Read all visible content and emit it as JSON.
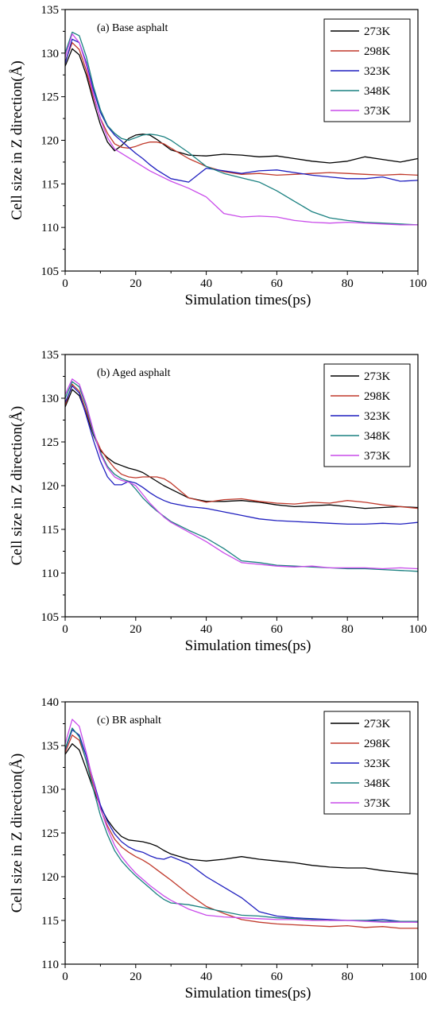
{
  "chart_data": [
    {
      "type": "line",
      "title": "(a) Base asphalt",
      "xlabel": "Simulation times(ps)",
      "ylabel": "Cell size in Z direction(Å)",
      "xlim": [
        0,
        100
      ],
      "ylim": [
        105,
        135
      ],
      "xticks": [
        0,
        20,
        40,
        60,
        80,
        100
      ],
      "yticks": [
        105,
        110,
        115,
        120,
        125,
        130,
        135
      ],
      "legend_position": "top-right",
      "grid": false,
      "series": [
        {
          "name": "273K",
          "color": "#000000",
          "x": [
            0,
            2,
            4,
            6,
            8,
            10,
            12,
            14,
            16,
            18,
            20,
            22,
            24,
            26,
            28,
            30,
            35,
            40,
            45,
            50,
            55,
            60,
            65,
            70,
            75,
            80,
            85,
            90,
            95,
            100
          ],
          "values": [
            128.5,
            130.5,
            129.8,
            127.5,
            124.5,
            121.8,
            119.8,
            118.8,
            119.4,
            120.2,
            120.6,
            120.7,
            120.6,
            120.1,
            119.5,
            118.9,
            118.3,
            118.2,
            118.4,
            118.3,
            118.1,
            118.2,
            117.9,
            117.6,
            117.4,
            117.6,
            118.1,
            117.8,
            117.5,
            117.9
          ]
        },
        {
          "name": "298K",
          "color": "#c0392b",
          "x": [
            0,
            2,
            4,
            6,
            8,
            10,
            12,
            14,
            16,
            18,
            20,
            22,
            24,
            26,
            28,
            30,
            35,
            40,
            45,
            50,
            55,
            60,
            65,
            70,
            75,
            80,
            85,
            90,
            95,
            100
          ],
          "values": [
            129.0,
            131.2,
            130.4,
            128.0,
            125.0,
            122.5,
            120.8,
            119.6,
            119.2,
            119.1,
            119.3,
            119.6,
            119.8,
            119.8,
            119.6,
            119.1,
            117.9,
            117.0,
            116.4,
            116.1,
            116.2,
            116.0,
            116.1,
            116.2,
            116.3,
            116.2,
            116.1,
            116.0,
            116.1,
            116.0
          ]
        },
        {
          "name": "323K",
          "color": "#1f1fbf",
          "x": [
            0,
            2,
            4,
            6,
            8,
            10,
            12,
            14,
            16,
            18,
            20,
            22,
            24,
            26,
            28,
            30,
            35,
            40,
            45,
            50,
            55,
            60,
            65,
            70,
            75,
            80,
            85,
            90,
            95,
            100
          ],
          "values": [
            128.8,
            131.6,
            131.2,
            128.9,
            125.8,
            123.2,
            121.6,
            120.6,
            119.9,
            119.2,
            118.5,
            117.9,
            117.2,
            116.6,
            116.1,
            115.6,
            115.2,
            116.8,
            116.5,
            116.2,
            116.5,
            116.6,
            116.3,
            116.0,
            115.8,
            115.6,
            115.6,
            115.8,
            115.3,
            115.4
          ]
        },
        {
          "name": "348K",
          "color": "#1a8080",
          "x": [
            0,
            2,
            4,
            6,
            8,
            10,
            12,
            14,
            16,
            18,
            20,
            22,
            24,
            26,
            28,
            30,
            35,
            40,
            45,
            50,
            55,
            60,
            65,
            70,
            75,
            80,
            85,
            90,
            95,
            100
          ],
          "values": [
            130.0,
            132.4,
            132.0,
            129.6,
            126.2,
            123.5,
            121.7,
            120.8,
            120.2,
            120.0,
            120.3,
            120.6,
            120.7,
            120.6,
            120.4,
            120.0,
            118.6,
            117.0,
            116.2,
            115.7,
            115.2,
            114.2,
            113.0,
            111.8,
            111.1,
            110.8,
            110.6,
            110.5,
            110.4,
            110.3
          ]
        },
        {
          "name": "373K",
          "color": "#c94bea",
          "x": [
            0,
            2,
            4,
            6,
            8,
            10,
            12,
            14,
            16,
            18,
            20,
            22,
            24,
            26,
            28,
            30,
            35,
            40,
            45,
            50,
            55,
            60,
            65,
            70,
            75,
            80,
            85,
            90,
            95,
            100
          ],
          "values": [
            129.5,
            132.2,
            131.2,
            128.6,
            125.3,
            122.4,
            120.3,
            119.0,
            118.5,
            118.0,
            117.5,
            117.0,
            116.5,
            116.1,
            115.7,
            115.3,
            114.5,
            113.5,
            111.6,
            111.2,
            111.3,
            111.2,
            110.8,
            110.6,
            110.5,
            110.6,
            110.5,
            110.4,
            110.3,
            110.3
          ]
        }
      ]
    },
    {
      "type": "line",
      "title": "(b) Aged asphalt",
      "xlabel": "Simulation times(ps)",
      "ylabel": "Cell size in Z direction(Å)",
      "xlim": [
        0,
        100
      ],
      "ylim": [
        105,
        135
      ],
      "xticks": [
        0,
        20,
        40,
        60,
        80,
        100
      ],
      "yticks": [
        105,
        110,
        115,
        120,
        125,
        130,
        135
      ],
      "legend_position": "top-right",
      "grid": false,
      "series": [
        {
          "name": "273K",
          "color": "#000000",
          "x": [
            0,
            2,
            4,
            6,
            8,
            10,
            12,
            14,
            16,
            18,
            20,
            22,
            24,
            26,
            28,
            30,
            35,
            40,
            45,
            50,
            55,
            60,
            65,
            70,
            75,
            80,
            85,
            90,
            95,
            100
          ],
          "values": [
            129.0,
            131.0,
            130.3,
            128.2,
            125.8,
            124.0,
            123.2,
            122.6,
            122.3,
            122.0,
            121.8,
            121.5,
            121.0,
            120.5,
            120.0,
            119.6,
            118.6,
            118.2,
            118.2,
            118.3,
            118.1,
            117.8,
            117.6,
            117.7,
            117.8,
            117.6,
            117.4,
            117.5,
            117.6,
            117.5
          ]
        },
        {
          "name": "298K",
          "color": "#c0392b",
          "x": [
            0,
            2,
            4,
            6,
            8,
            10,
            12,
            14,
            16,
            18,
            20,
            22,
            24,
            26,
            28,
            30,
            35,
            40,
            45,
            50,
            55,
            60,
            65,
            70,
            75,
            80,
            85,
            90,
            95,
            100
          ],
          "values": [
            129.2,
            131.6,
            130.8,
            128.5,
            126.0,
            124.2,
            123.0,
            122.0,
            121.3,
            121.0,
            120.9,
            121.0,
            121.0,
            121.0,
            120.8,
            120.3,
            118.6,
            118.1,
            118.4,
            118.5,
            118.2,
            118.0,
            117.9,
            118.1,
            118.0,
            118.3,
            118.1,
            117.8,
            117.6,
            117.4
          ]
        },
        {
          "name": "323K",
          "color": "#1f1fbf",
          "x": [
            0,
            2,
            4,
            6,
            8,
            10,
            12,
            14,
            16,
            18,
            20,
            22,
            24,
            26,
            28,
            30,
            35,
            40,
            45,
            50,
            55,
            60,
            65,
            70,
            75,
            80,
            85,
            90,
            95,
            100
          ],
          "values": [
            129.5,
            131.4,
            130.6,
            128.0,
            125.2,
            122.8,
            121.0,
            120.1,
            120.1,
            120.5,
            120.3,
            119.8,
            119.2,
            118.7,
            118.3,
            118.0,
            117.6,
            117.4,
            117.0,
            116.6,
            116.2,
            116.0,
            115.9,
            115.8,
            115.7,
            115.6,
            115.6,
            115.7,
            115.6,
            115.8
          ]
        },
        {
          "name": "348K",
          "color": "#1a8080",
          "x": [
            0,
            2,
            4,
            6,
            8,
            10,
            12,
            14,
            16,
            18,
            20,
            22,
            24,
            26,
            28,
            30,
            35,
            40,
            45,
            50,
            55,
            60,
            65,
            70,
            75,
            80,
            85,
            90,
            95,
            100
          ],
          "values": [
            130.0,
            131.9,
            131.3,
            129.0,
            126.0,
            123.8,
            122.2,
            121.3,
            120.8,
            120.5,
            119.6,
            118.6,
            117.8,
            117.1,
            116.5,
            115.9,
            114.9,
            114.0,
            112.8,
            111.4,
            111.2,
            110.9,
            110.8,
            110.7,
            110.6,
            110.5,
            110.5,
            110.4,
            110.3,
            110.2
          ]
        },
        {
          "name": "373K",
          "color": "#c94bea",
          "x": [
            0,
            2,
            4,
            6,
            8,
            10,
            12,
            14,
            16,
            18,
            20,
            22,
            24,
            26,
            28,
            30,
            35,
            40,
            45,
            50,
            55,
            60,
            65,
            70,
            75,
            80,
            85,
            90,
            95,
            100
          ],
          "values": [
            130.4,
            132.2,
            131.6,
            129.3,
            126.3,
            123.6,
            122.0,
            121.0,
            120.6,
            120.4,
            120.0,
            119.0,
            118.0,
            117.2,
            116.4,
            115.8,
            114.7,
            113.6,
            112.3,
            111.2,
            111.0,
            110.8,
            110.7,
            110.8,
            110.6,
            110.6,
            110.6,
            110.5,
            110.6,
            110.5
          ]
        }
      ]
    },
    {
      "type": "line",
      "title": "(c) BR asphalt",
      "xlabel": "Simulation times(ps)",
      "ylabel": "Cell size in Z direction(Å)",
      "xlim": [
        0,
        100
      ],
      "ylim": [
        110,
        140
      ],
      "xticks": [
        0,
        20,
        40,
        60,
        80,
        100
      ],
      "yticks": [
        110,
        115,
        120,
        125,
        130,
        135,
        140
      ],
      "legend_position": "top-right",
      "grid": false,
      "series": [
        {
          "name": "273K",
          "color": "#000000",
          "x": [
            0,
            2,
            4,
            6,
            8,
            10,
            12,
            14,
            16,
            18,
            20,
            22,
            24,
            26,
            28,
            30,
            35,
            40,
            45,
            50,
            55,
            60,
            65,
            70,
            75,
            80,
            85,
            90,
            95,
            100
          ],
          "values": [
            134.0,
            135.2,
            134.5,
            132.3,
            130.0,
            128.0,
            126.5,
            125.4,
            124.6,
            124.2,
            124.1,
            124.0,
            123.8,
            123.5,
            123.0,
            122.6,
            122.0,
            121.8,
            122.0,
            122.3,
            122.0,
            121.8,
            121.6,
            121.3,
            121.1,
            121.0,
            121.0,
            120.7,
            120.5,
            120.3
          ]
        },
        {
          "name": "298K",
          "color": "#c0392b",
          "x": [
            0,
            2,
            4,
            6,
            8,
            10,
            12,
            14,
            16,
            18,
            20,
            22,
            24,
            26,
            28,
            30,
            35,
            40,
            45,
            50,
            55,
            60,
            65,
            70,
            75,
            80,
            85,
            90,
            95,
            100
          ],
          "values": [
            134.2,
            136.2,
            135.6,
            133.3,
            130.5,
            127.8,
            125.8,
            124.3,
            123.4,
            122.8,
            122.3,
            121.9,
            121.4,
            120.8,
            120.2,
            119.6,
            118.0,
            116.6,
            115.8,
            115.1,
            114.8,
            114.6,
            114.5,
            114.4,
            114.3,
            114.4,
            114.2,
            114.3,
            114.1,
            114.1
          ]
        },
        {
          "name": "323K",
          "color": "#1f1fbf",
          "x": [
            0,
            2,
            4,
            6,
            8,
            10,
            12,
            14,
            16,
            18,
            20,
            22,
            24,
            26,
            28,
            30,
            35,
            40,
            45,
            50,
            55,
            60,
            65,
            70,
            75,
            80,
            85,
            90,
            95,
            100
          ],
          "values": [
            134.5,
            136.8,
            136.2,
            133.8,
            131.0,
            128.2,
            126.3,
            124.9,
            124.0,
            123.4,
            123.0,
            122.8,
            122.4,
            122.1,
            122.0,
            122.3,
            121.5,
            120.0,
            118.8,
            117.6,
            116.0,
            115.5,
            115.3,
            115.2,
            115.1,
            115.0,
            115.0,
            115.1,
            114.9,
            114.8
          ]
        },
        {
          "name": "348K",
          "color": "#1a8080",
          "x": [
            0,
            2,
            4,
            6,
            8,
            10,
            12,
            14,
            16,
            18,
            20,
            22,
            24,
            26,
            28,
            30,
            35,
            40,
            45,
            50,
            55,
            60,
            65,
            70,
            75,
            80,
            85,
            90,
            95,
            100
          ],
          "values": [
            134.6,
            137.0,
            136.0,
            133.2,
            130.0,
            127.0,
            124.8,
            123.0,
            121.8,
            120.9,
            120.1,
            119.4,
            118.7,
            118.0,
            117.4,
            117.0,
            116.8,
            116.4,
            116.0,
            115.6,
            115.5,
            115.3,
            115.2,
            115.1,
            115.0,
            115.0,
            115.0,
            114.9,
            114.9,
            114.9
          ]
        },
        {
          "name": "373K",
          "color": "#c94bea",
          "x": [
            0,
            2,
            4,
            6,
            8,
            10,
            12,
            14,
            16,
            18,
            20,
            22,
            24,
            26,
            28,
            30,
            35,
            40,
            45,
            50,
            55,
            60,
            65,
            70,
            75,
            80,
            85,
            90,
            95,
            100
          ],
          "values": [
            135.2,
            138.0,
            137.2,
            134.2,
            130.8,
            127.8,
            125.5,
            123.6,
            122.3,
            121.3,
            120.4,
            119.7,
            119.0,
            118.4,
            117.8,
            117.3,
            116.3,
            115.6,
            115.4,
            115.3,
            115.2,
            115.1,
            115.1,
            115.0,
            115.0,
            115.0,
            114.9,
            114.8,
            114.8,
            114.8
          ]
        }
      ]
    }
  ]
}
